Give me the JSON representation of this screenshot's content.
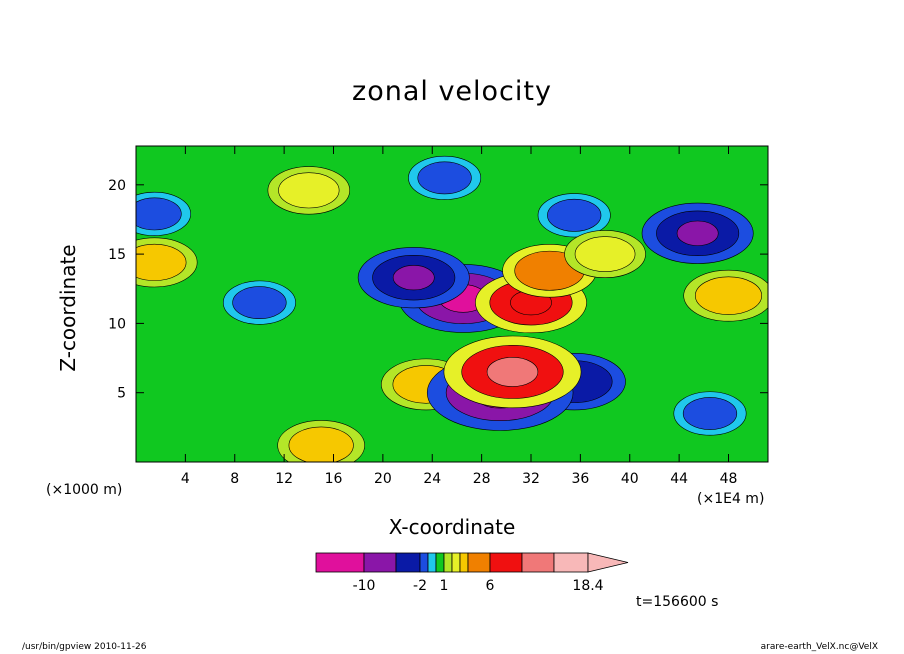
{
  "chart_data": {
    "type": "heatmap",
    "title": "zonal velocity",
    "xlabel": "X-coordinate",
    "ylabel": "Z-coordinate",
    "x_unit_note": "(×1E4 m)",
    "y_unit_note": "(×1000 m)",
    "xlim": [
      0,
      51.2
    ],
    "ylim": [
      0,
      22.8
    ],
    "x_ticks": [
      4,
      8,
      12,
      16,
      20,
      24,
      28,
      32,
      36,
      40,
      44,
      48
    ],
    "y_ticks": [
      5,
      10,
      15,
      20
    ],
    "colorbar": {
      "levels": [
        -14,
        -10,
        -6,
        -2,
        -1,
        0,
        1,
        2,
        3,
        4,
        6,
        10,
        14,
        18.4
      ],
      "colors": [
        "#e0109c",
        "#8a16a8",
        "#0a1aa6",
        "#1c4de0",
        "#20c8ec",
        "#10c820",
        "#b4e628",
        "#e6f028",
        "#f6c800",
        "#f08000",
        "#f01010",
        "#f07878",
        "#f8b8b8"
      ],
      "labels": [
        "-10",
        "-2",
        "1",
        "6",
        "18.4"
      ]
    },
    "field_features": [
      {
        "x": 10,
        "z": 11.5,
        "value": -1.5
      },
      {
        "x": 26.5,
        "z": 11.8,
        "value": -8
      },
      {
        "x": 22.5,
        "z": 13.3,
        "value": -6
      },
      {
        "x": 32,
        "z": 11.5,
        "value": 6
      },
      {
        "x": 33.5,
        "z": 13.8,
        "value": 4
      },
      {
        "x": 45.5,
        "z": 16.5,
        "value": -6
      },
      {
        "x": 48,
        "z": 12,
        "value": 3.5
      },
      {
        "x": 46.5,
        "z": 3.5,
        "value": -1.5
      },
      {
        "x": 35.5,
        "z": 5.8,
        "value": -5
      },
      {
        "x": 23.5,
        "z": 5.6,
        "value": 3.5
      },
      {
        "x": 15,
        "z": 1.2,
        "value": 3.2
      },
      {
        "x": 1.5,
        "z": 14.4,
        "value": 3
      },
      {
        "x": 1.5,
        "z": 17.9,
        "value": -1.5
      },
      {
        "x": 14,
        "z": 19.6,
        "value": 2.6
      },
      {
        "x": 25,
        "z": 20.5,
        "value": -1.5
      },
      {
        "x": 29.5,
        "z": 5,
        "value": -10
      },
      {
        "x": 30.5,
        "z": 6.5,
        "value": 9
      },
      {
        "x": 35.5,
        "z": 17.8,
        "value": -1.5
      },
      {
        "x": 38,
        "z": 15,
        "value": 2.5
      }
    ],
    "time_label": "t=156600 s"
  },
  "footer": {
    "left": "/usr/bin/gpview   2010-11-26",
    "right": "arare-earth_VelX.nc@VelX"
  }
}
